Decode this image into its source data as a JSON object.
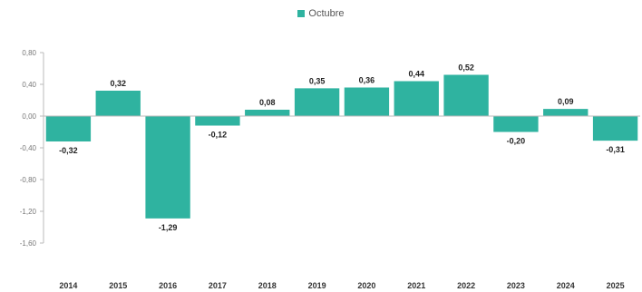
{
  "chart_data": {
    "type": "bar",
    "categories": [
      "2014",
      "2015",
      "2016",
      "2017",
      "2018",
      "2019",
      "2020",
      "2021",
      "2022",
      "2023",
      "2024",
      "2025"
    ],
    "series": [
      {
        "name": "Octubre",
        "values": [
          -0.32,
          0.32,
          -1.29,
          -0.12,
          0.08,
          0.35,
          0.36,
          0.44,
          0.52,
          -0.2,
          0.09,
          -0.31
        ],
        "labels": [
          "-0,32",
          "0,32",
          "-1,29",
          "-0,12",
          "0,08",
          "0,35",
          "0,36",
          "0,44",
          "0,52",
          "-0,20",
          "0,09",
          "-0,31"
        ]
      }
    ],
    "yticks": [
      0.8,
      0.4,
      0.0,
      -0.4,
      -0.8,
      -1.2,
      -1.6
    ],
    "ytick_labels": [
      "0,80",
      "0,40",
      "0,00",
      "-0,40",
      "-0,80",
      "-1,20",
      "-1,60"
    ],
    "ylim": [
      -1.6,
      0.8
    ],
    "legend_position": "top-center",
    "grid": false,
    "colors": {
      "bar": "#2fb3a0",
      "axis": "#bbbbbb"
    }
  }
}
